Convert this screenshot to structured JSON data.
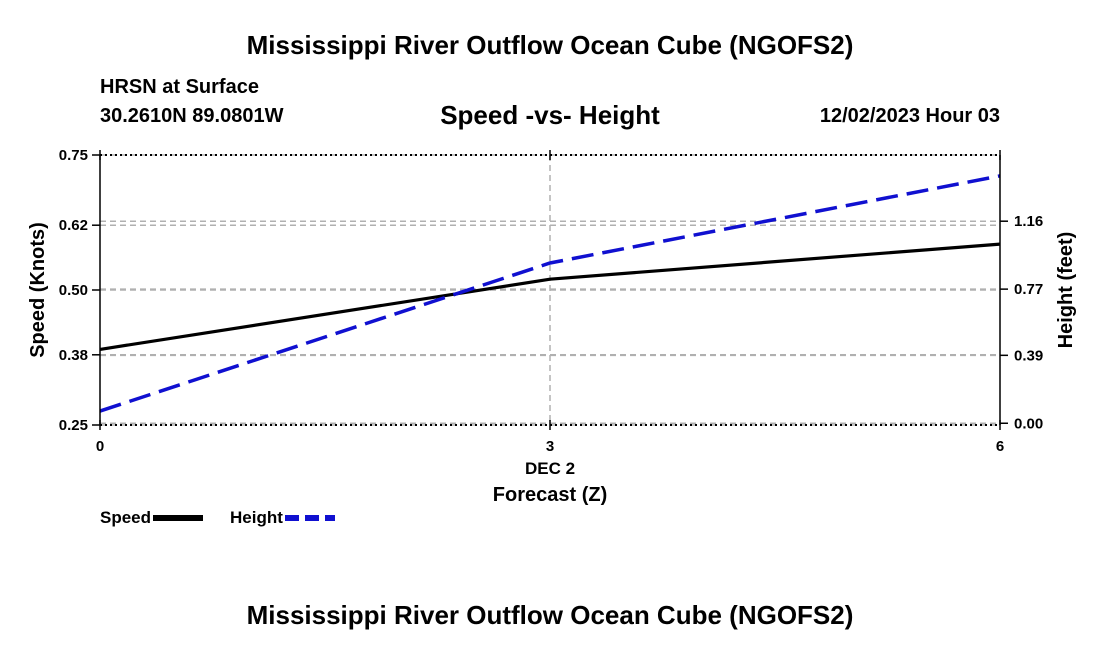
{
  "header": {
    "title": "Mississippi River Outflow Ocean Cube (NGOFS2)",
    "station": "HRSN at Surface",
    "coords": "30.2610N  89.0801W",
    "subtitle": "Speed -vs- Height",
    "datetime": "12/02/2023 Hour 03"
  },
  "footer": {
    "title": "Mississippi River Outflow Ocean Cube (NGOFS2)"
  },
  "colors": {
    "speed": "#000000",
    "height": "#1010d0",
    "grid": "#b0b0b0"
  },
  "legend": {
    "speed_label": "Speed",
    "height_label": "Height"
  },
  "chart_data": {
    "type": "line",
    "title": "Speed -vs- Height",
    "xlabel": "Forecast (Z)",
    "xlabel_date": "DEC 2",
    "x": [
      0,
      3,
      6
    ],
    "xlim": [
      0,
      6
    ],
    "xticks": [
      "0",
      "3",
      "6"
    ],
    "y_left": {
      "label": "Speed (Knots)",
      "lim": [
        0.25,
        0.75
      ],
      "ticks": [
        "0.25",
        "0.38",
        "0.50",
        "0.62",
        "0.75"
      ]
    },
    "y_right": {
      "label": "Height (feet)",
      "lim": [
        -0.01,
        1.54
      ],
      "ticks": [
        "0.00",
        "0.39",
        "0.77",
        "1.16"
      ]
    },
    "series": [
      {
        "name": "Speed",
        "axis": "left",
        "style": "solid",
        "values": [
          0.39,
          0.52,
          0.585
        ]
      },
      {
        "name": "Height",
        "axis": "right",
        "style": "dashed",
        "values": [
          0.07,
          0.92,
          1.42
        ]
      }
    ]
  }
}
